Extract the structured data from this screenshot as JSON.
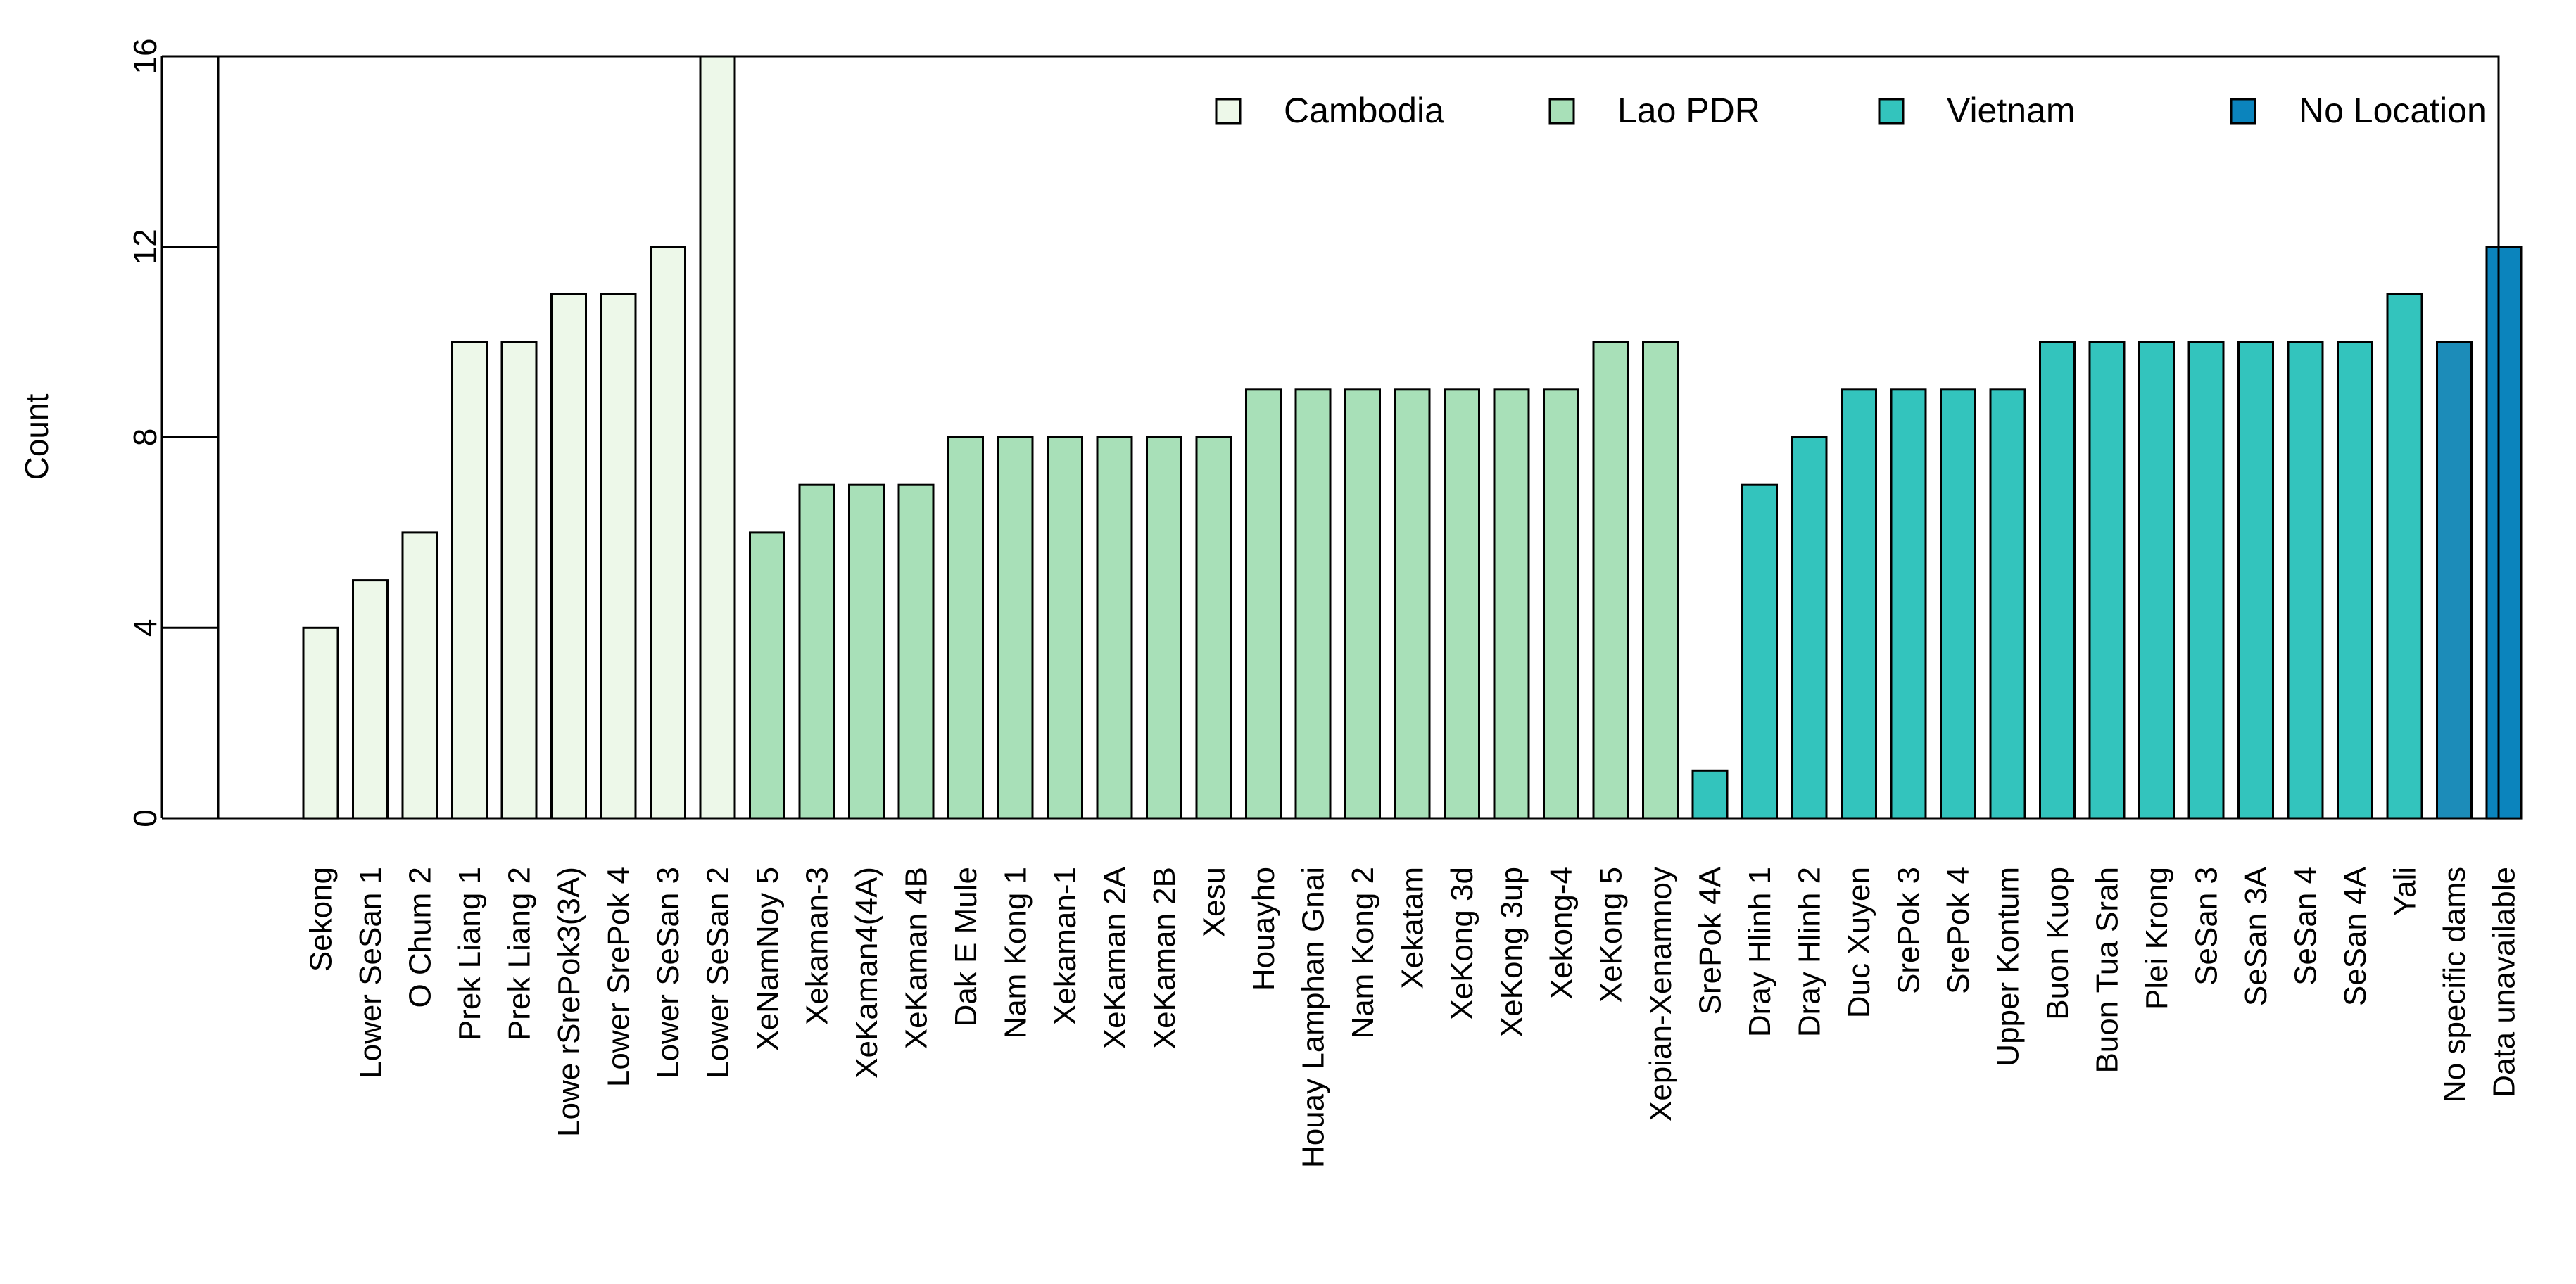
{
  "chart_data": {
    "type": "bar",
    "title": "",
    "xlabel": "",
    "ylabel": "Count",
    "ylim": [
      0,
      16
    ],
    "yticks": [
      0,
      4,
      8,
      12,
      16
    ],
    "grid": false,
    "legend_position": "top-right",
    "categories": [
      "Sekong",
      "Lower SeSan 1",
      "O Chum 2",
      "Prek Liang 1",
      "Prek Liang 2",
      "Lowe rSrePok3(3A)",
      "Lower SrePok 4",
      "Lower SeSan 3",
      "Lower SeSan 2",
      "XeNamNoy 5",
      "Xekaman-3",
      "XeKaman4(4A)",
      "XeKaman 4B",
      "Dak E Mule",
      "Nam Kong 1",
      "Xekaman-1",
      "XeKaman 2A",
      "XeKaman 2B",
      "Xesu",
      "Houayho",
      "Houay Lamphan Gnai",
      "Nam Kong 2",
      "Xekatam",
      "XeKong 3d",
      "XeKong 3up",
      "Xekong-4",
      "XeKong 5",
      "Xepian-Xenamnoy",
      "SrePok 4A",
      "Dray Hlinh 1",
      "Dray Hlinh 2",
      "Duc Xuyen",
      "SrePok 3",
      "SrePok 4",
      "Upper Kontum",
      "Buon Kuop",
      "Buon Tua Srah",
      "Plei Krong",
      "SeSan 3",
      "SeSan 3A",
      "SeSan 4",
      "SeSan 4A",
      "Yali",
      "No specific dams",
      "Data unavailable"
    ],
    "values": [
      4,
      5,
      6,
      10,
      10,
      11,
      11,
      12,
      16,
      6,
      7,
      7,
      7,
      8,
      8,
      8,
      8,
      8,
      8,
      9,
      9,
      9,
      9,
      9,
      9,
      9,
      10,
      10,
      1,
      7,
      8,
      9,
      9,
      9,
      9,
      10,
      10,
      10,
      10,
      10,
      10,
      10,
      11,
      10,
      12
    ],
    "groups": [
      "Cambodia",
      "Cambodia",
      "Cambodia",
      "Cambodia",
      "Cambodia",
      "Cambodia",
      "Cambodia",
      "Cambodia",
      "Cambodia",
      "Lao PDR",
      "Lao PDR",
      "Lao PDR",
      "Lao PDR",
      "Lao PDR",
      "Lao PDR",
      "Lao PDR",
      "Lao PDR",
      "Lao PDR",
      "Lao PDR",
      "Lao PDR",
      "Lao PDR",
      "Lao PDR",
      "Lao PDR",
      "Lao PDR",
      "Lao PDR",
      "Lao PDR",
      "Lao PDR",
      "Lao PDR",
      "Vietnam",
      "Vietnam",
      "Vietnam",
      "Vietnam",
      "Vietnam",
      "Vietnam",
      "Vietnam",
      "Vietnam",
      "Vietnam",
      "Vietnam",
      "Vietnam",
      "Vietnam",
      "Vietnam",
      "Vietnam",
      "Vietnam",
      "No Location",
      "No Location"
    ],
    "bar_colors": [
      "#edf8e9",
      "#edf8e9",
      "#edf8e9",
      "#edf8e9",
      "#edf8e9",
      "#edf8e9",
      "#edf8e9",
      "#edf8e9",
      "#edf8e9",
      "#a8e0b8",
      "#a8e0b8",
      "#a8e0b8",
      "#a8e0b8",
      "#a8e0b8",
      "#a8e0b8",
      "#a8e0b8",
      "#a8e0b8",
      "#a8e0b8",
      "#a8e0b8",
      "#a8e0b8",
      "#a8e0b8",
      "#a8e0b8",
      "#a8e0b8",
      "#a8e0b8",
      "#a8e0b8",
      "#a8e0b8",
      "#a8e0b8",
      "#a8e0b8",
      "#33c4bd",
      "#33c4bd",
      "#33c4bd",
      "#33c4bd",
      "#33c4bd",
      "#33c4bd",
      "#33c4bd",
      "#33c4bd",
      "#33c4bd",
      "#33c4bd",
      "#33c4bd",
      "#33c4bd",
      "#33c4bd",
      "#33c4bd",
      "#33c4bd",
      "#1c8cb9",
      "#0b84bd"
    ],
    "legend": [
      {
        "label": "Cambodia",
        "color": "#edf8e9"
      },
      {
        "label": "Lao PDR",
        "color": "#a8e0b8"
      },
      {
        "label": "Vietnam",
        "color": "#33c4bd"
      },
      {
        "label": "No Location",
        "color": "#0b84bd"
      }
    ]
  }
}
